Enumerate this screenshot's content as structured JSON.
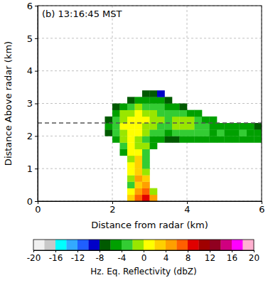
{
  "chart_data": {
    "type": "heatmap",
    "title": "(b) 13:16:45 MST",
    "x_label": "Distance from radar (km)",
    "y_label": "Distance Above radar (km)",
    "xlim": [
      0,
      6
    ],
    "xticks": [
      0,
      2,
      4,
      6
    ],
    "ylim": [
      0,
      6
    ],
    "yticks": [
      0,
      1,
      2,
      3,
      4,
      5,
      6
    ],
    "grid": true,
    "hline": 2.4,
    "x": [
      1.9,
      2.1,
      2.3,
      2.5,
      2.7,
      2.9,
      3.1,
      3.3,
      3.5,
      3.7,
      3.9,
      4.1,
      4.3,
      4.5,
      4.7,
      4.9,
      5.1,
      5.3,
      5.5,
      5.7,
      5.9
    ],
    "y": [
      0.1,
      0.3,
      0.5,
      0.7,
      0.9,
      1.1,
      1.3,
      1.5,
      1.7,
      1.9,
      2.1,
      2.3,
      2.5,
      2.7,
      2.9,
      3.1,
      3.3
    ],
    "z": [
      [
        null,
        null,
        null,
        2,
        6,
        9,
        5,
        null,
        null,
        null,
        null,
        null,
        null,
        null,
        null,
        null,
        null,
        null,
        null,
        null,
        null
      ],
      [
        null,
        null,
        null,
        0,
        4,
        6,
        -2,
        null,
        null,
        null,
        null,
        null,
        null,
        null,
        null,
        null,
        null,
        null,
        null,
        null,
        null
      ],
      [
        null,
        null,
        null,
        -4,
        3,
        5,
        null,
        null,
        null,
        null,
        null,
        null,
        null,
        null,
        null,
        null,
        null,
        null,
        null,
        null,
        null
      ],
      [
        null,
        null,
        null,
        -2,
        4,
        2,
        null,
        null,
        null,
        null,
        null,
        null,
        null,
        null,
        null,
        null,
        null,
        null,
        null,
        null,
        null
      ],
      [
        null,
        null,
        null,
        0,
        3,
        -2,
        null,
        null,
        null,
        null,
        null,
        null,
        null,
        null,
        null,
        null,
        null,
        null,
        null,
        null,
        null
      ],
      [
        null,
        null,
        null,
        1,
        2,
        -3,
        null,
        null,
        null,
        null,
        null,
        null,
        null,
        null,
        null,
        null,
        null,
        null,
        null,
        null,
        null
      ],
      [
        null,
        null,
        null,
        -1,
        2,
        -4,
        null,
        null,
        null,
        null,
        null,
        null,
        null,
        null,
        null,
        null,
        null,
        null,
        null,
        null,
        null
      ],
      [
        null,
        null,
        -5,
        1,
        0,
        -3,
        null,
        null,
        null,
        null,
        null,
        null,
        null,
        null,
        null,
        null,
        null,
        null,
        null,
        null,
        null
      ],
      [
        null,
        null,
        -3,
        1,
        -1,
        -2,
        -6,
        null,
        null,
        null,
        null,
        null,
        null,
        null,
        null,
        null,
        null,
        null,
        null,
        null,
        null
      ],
      [
        null,
        -6,
        -2,
        0,
        -1,
        -3,
        -5,
        -6,
        -7,
        -7,
        -6,
        -6,
        -5,
        -5,
        -6,
        -6,
        -5,
        -6,
        -6,
        -5,
        -6
      ],
      [
        -7,
        -4,
        -1,
        0,
        1,
        -2,
        -3,
        -4,
        -5,
        -4,
        -3,
        -4,
        -4,
        -4,
        -5,
        -4,
        -5,
        -5,
        -4,
        -5,
        -5
      ],
      [
        -6,
        -3,
        0,
        1,
        0,
        -1,
        -2,
        -3,
        -3,
        -2,
        -1,
        -2,
        -3,
        -4,
        -5,
        -5,
        -6,
        -5,
        -6,
        -6,
        -7
      ],
      [
        -7,
        -3,
        -1,
        0,
        1,
        0,
        -1,
        -2,
        -3,
        -1,
        -1,
        -2,
        -3,
        -5,
        -6,
        null,
        null,
        null,
        null,
        null,
        null
      ],
      [
        null,
        -5,
        -2,
        -1,
        0,
        -1,
        -2,
        -3,
        -4,
        -3,
        -4,
        -5,
        -6,
        null,
        null,
        null,
        null,
        null,
        null,
        null,
        null
      ],
      [
        null,
        -7,
        -5,
        -3,
        -2,
        -3,
        -3,
        -4,
        -5,
        -6,
        -7,
        null,
        null,
        null,
        null,
        null,
        null,
        null,
        null,
        null,
        null
      ],
      [
        null,
        null,
        null,
        -7,
        -5,
        -5,
        -6,
        -6,
        -7,
        null,
        null,
        null,
        null,
        null,
        null,
        null,
        null,
        null,
        null,
        null,
        null
      ],
      [
        null,
        null,
        null,
        null,
        null,
        -8,
        -7,
        -9,
        null,
        null,
        null,
        null,
        null,
        null,
        null,
        null,
        null,
        null,
        null,
        null,
        null
      ]
    ],
    "colorbar": {
      "label": "Hz. Eq. Reflectivity (dbZ)",
      "range": [
        -20,
        20
      ],
      "ticks": [
        -20,
        -16,
        -12,
        -8,
        -4,
        0,
        4,
        8,
        12,
        16,
        20
      ],
      "colors": [
        "#f0f0f0",
        "#c8c8c8",
        "#00ffff",
        "#33aaff",
        "#1f5fff",
        "#0000c8",
        "#005a00",
        "#00a000",
        "#33cc33",
        "#99e600",
        "#ffff00",
        "#ffd000",
        "#ffa000",
        "#ff6000",
        "#e00000",
        "#a00000",
        "#900020",
        "#d00080",
        "#ff00ff",
        "#ffb0d0"
      ]
    }
  }
}
